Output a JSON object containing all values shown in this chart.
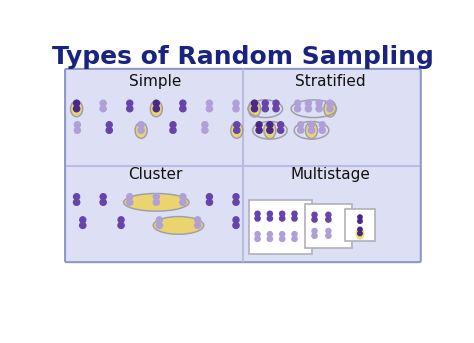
{
  "title": "Types of Random Sampling",
  "title_color": "#1a237e",
  "title_fontsize": 18,
  "bg_color": "#ffffff",
  "panel_bg": "#dde0f5",
  "panel_border": "#9098c8",
  "divider_color": "#b8bce0",
  "quadrant_labels": [
    "Simple",
    "Stratified",
    "Cluster",
    "Multistage"
  ],
  "label_fontsize": 11,
  "label_color": "#111111",
  "person_dark": "#4a2888",
  "person_mid": "#6644aa",
  "person_light": "#b0a0d8",
  "highlight_yellow": "#f0d040",
  "highlight_alpha": 0.75,
  "oval_edge": "#a0a0a0",
  "box_edge": "#b0b0b8",
  "box_face": "#ffffff"
}
